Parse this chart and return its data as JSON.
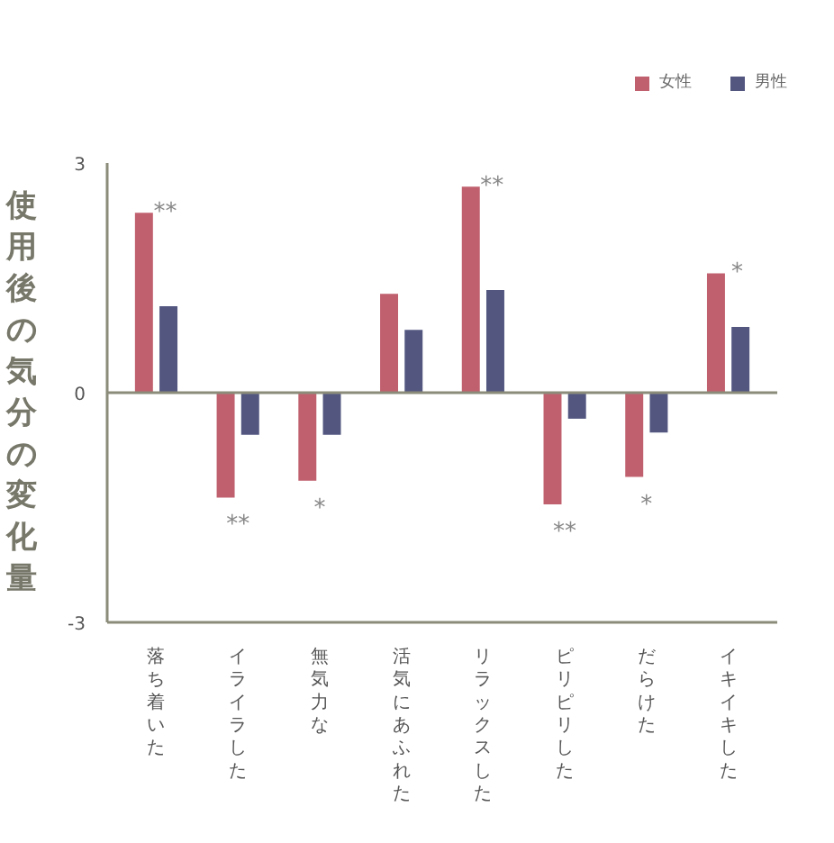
{
  "chart_data": {
    "type": "bar",
    "ylabel": "使用後の気分の変化量",
    "categories": [
      "落ち着いた",
      "イライラした",
      "無気力な",
      "活気にあふれた",
      "リラックスした",
      "ピリピリした",
      "だらけた",
      "イキイキした"
    ],
    "series": [
      {
        "name": "女性",
        "color": "#c0606e",
        "values": [
          2.35,
          -1.37,
          -1.15,
          1.29,
          2.69,
          -1.46,
          -1.1,
          1.56
        ]
      },
      {
        "name": "男性",
        "color": "#535780",
        "values": [
          1.13,
          -0.55,
          -0.55,
          0.82,
          1.34,
          -0.34,
          -0.52,
          0.86
        ]
      }
    ],
    "ylim": [
      -3,
      3
    ],
    "yticks": [
      -3,
      0,
      3
    ],
    "grid": false,
    "legend": "top right",
    "ref_lines": [
      {
        "axis": "y",
        "value": 0
      }
    ],
    "annotations": [
      {
        "text": "**",
        "x": "落ち着いた",
        "y": 2.35
      },
      {
        "text": "**",
        "x": "イライラした",
        "y": -1.37
      },
      {
        "text": "*",
        "x": "無気力な",
        "y": -1.15
      },
      {
        "text": "**",
        "x": "リラックスした",
        "y": 2.69
      },
      {
        "text": "**",
        "x": "ピリピリした",
        "y": -1.46
      },
      {
        "text": "*",
        "x": "だらけた",
        "y": -1.1
      },
      {
        "text": "*",
        "x": "イキイキした",
        "y": 1.56
      }
    ]
  }
}
